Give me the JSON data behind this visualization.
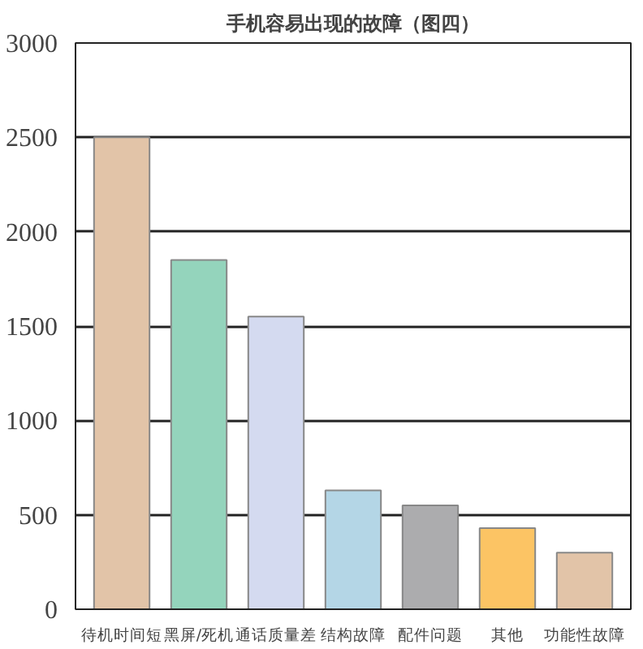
{
  "chart_data": {
    "type": "bar",
    "title": "手机容易出现的故障（图四）",
    "categories": [
      "待机时间短",
      "黑屏/死机",
      "通话质量差",
      "结构故障",
      "配件问题",
      "其他",
      "功能性故障"
    ],
    "values": [
      2500,
      1850,
      1550,
      630,
      550,
      430,
      300
    ],
    "colors": [
      "#e2c4a8",
      "#94d4bc",
      "#d4daf0",
      "#b4d6e6",
      "#acacae",
      "#fcc464",
      "#e2c4a8"
    ],
    "ylim": [
      0,
      3000
    ],
    "yticks": [
      0,
      500,
      1000,
      1500,
      2000,
      2500,
      3000
    ],
    "grid": "y"
  }
}
